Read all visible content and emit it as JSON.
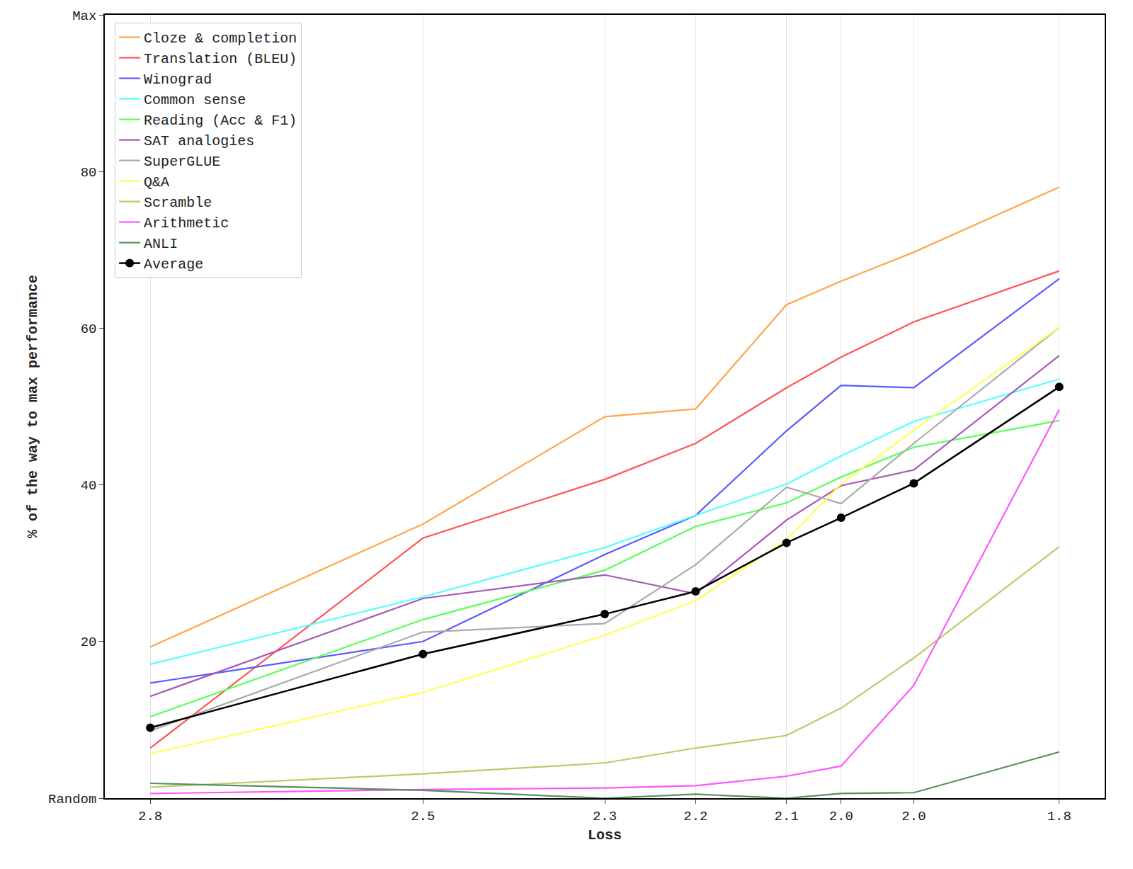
{
  "chart_data": {
    "type": "line",
    "x_label": "Loss",
    "y_label": "% of the way to max performance",
    "x": [
      2.8,
      2.5,
      2.3,
      2.2,
      2.1,
      2.04,
      1.96,
      1.8
    ],
    "xlim": [
      2.85,
      1.75
    ],
    "xticks": [
      {
        "value": 2.8,
        "label": "2.8"
      },
      {
        "value": 2.5,
        "label": "2.5"
      },
      {
        "value": 2.3,
        "label": "2.3"
      },
      {
        "value": 2.2,
        "label": "2.2"
      },
      {
        "value": 2.1,
        "label": "2.1"
      },
      {
        "value": 2.04,
        "label": "2.0"
      },
      {
        "value": 1.96,
        "label": "2.0"
      },
      {
        "value": 1.8,
        "label": "1.8"
      }
    ],
    "ylim": [
      0,
      100
    ],
    "yticks": [
      {
        "value": 0,
        "label": "Random"
      },
      20,
      40,
      60,
      80,
      {
        "value": 100,
        "label": "Max"
      }
    ],
    "grid": "x",
    "legend": "upper left",
    "series": [
      {
        "name": "Cloze & completion",
        "color": "#ffa64d",
        "values": [
          19.3,
          35,
          48.7,
          49.7,
          63,
          66,
          69.7,
          78
        ]
      },
      {
        "name": "Translation (BLEU)",
        "color": "#ff5555",
        "values": [
          6.4,
          33.2,
          40.7,
          45.3,
          52.4,
          56.3,
          60.8,
          67.3
        ]
      },
      {
        "name": "Winograd",
        "color": "#5a5aff",
        "values": [
          14.7,
          20,
          31.1,
          36.1,
          46.9,
          52.7,
          52.4,
          66.3
        ]
      },
      {
        "name": "Common sense",
        "color": "#55ffff",
        "values": [
          17.1,
          25.7,
          32,
          36.1,
          40.1,
          43.7,
          48.1,
          53.5
        ]
      },
      {
        "name": "Reading (Acc & F1)",
        "color": "#55ff55",
        "values": [
          10.4,
          22.8,
          29.1,
          34.7,
          37.7,
          41,
          44.8,
          48.2
        ]
      },
      {
        "name": "SAT analogies",
        "color": "#aa55bb",
        "values": [
          13,
          25.5,
          28.5,
          26.1,
          35.5,
          39.9,
          41.9,
          56.5
        ]
      },
      {
        "name": "SuperGLUE",
        "color": "#aaaaaa",
        "values": [
          8.6,
          21.2,
          22.3,
          29.8,
          39.7,
          37.6,
          45.3,
          60.1
        ]
      },
      {
        "name": "Q&A",
        "color": "#ffff55",
        "values": [
          5.7,
          13.5,
          20.8,
          25.2,
          33,
          40.1,
          47,
          60.1
        ]
      },
      {
        "name": "Scramble",
        "color": "#b8cc66",
        "values": [
          1.4,
          3.1,
          4.5,
          6.4,
          8,
          11.5,
          17.9,
          32.1
        ]
      },
      {
        "name": "Arithmetic",
        "color": "#ff55ff",
        "values": [
          0.6,
          1.1,
          1.3,
          1.6,
          2.8,
          4.1,
          14.4,
          49.6
        ]
      },
      {
        "name": "ANLI",
        "color": "#5a8f5a",
        "values": [
          1.9,
          1,
          0,
          0.5,
          0,
          0.6,
          0.7,
          5.9
        ]
      },
      {
        "name": "Average",
        "color": "#000000",
        "marker": "circle",
        "values": [
          9,
          18.4,
          23.5,
          26.4,
          32.6,
          35.8,
          40.2,
          52.5
        ]
      }
    ]
  }
}
